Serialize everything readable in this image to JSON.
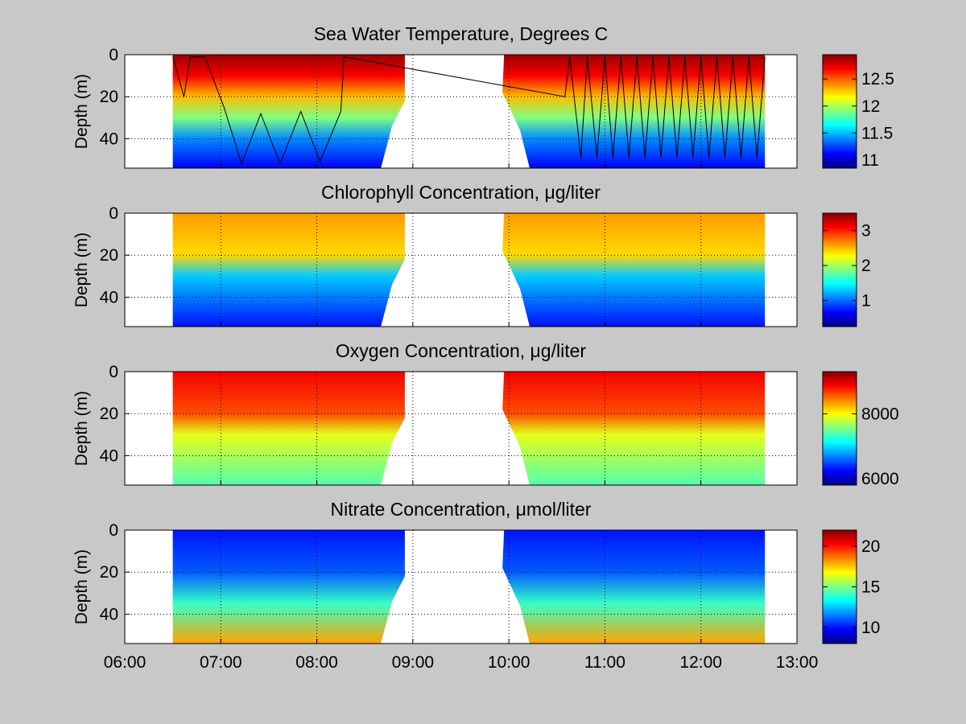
{
  "figure": {
    "background": "#c8c8c8",
    "colormap": "jet",
    "x_tick_labels": [
      "06:00",
      "07:00",
      "08:00",
      "09:00",
      "10:00",
      "11:00",
      "12:00",
      "13:00"
    ]
  },
  "chart_data": [
    {
      "type": "heatmap",
      "title": "Sea Water Temperature, Degrees C",
      "xlabel": "",
      "ylabel": "Depth (m)",
      "xlim": [
        "06:00",
        "13:00"
      ],
      "ylim": [
        54,
        0
      ],
      "y_ticks": [
        0,
        20,
        40
      ],
      "y_tick_labels": [
        "0",
        "20",
        "40"
      ],
      "x_ticks": [
        "06:00",
        "07:00",
        "08:00",
        "09:00",
        "10:00",
        "11:00",
        "12:00",
        "13:00"
      ],
      "grid": "dotted",
      "colorbar": {
        "range": [
          10.85,
          12.95
        ],
        "ticks": [
          11,
          11.5,
          12,
          12.5
        ],
        "tick_labels": [
          "11",
          "11.5",
          "12",
          "12.5"
        ]
      },
      "data_extent": {
        "segment1_time": [
          "06:30",
          "08:55"
        ],
        "segment2_time": [
          "09:55",
          "12:40"
        ],
        "max_depth": 54
      },
      "depth_profile": [
        {
          "depth": 0,
          "value": 12.9
        },
        {
          "depth": 10,
          "value": 12.7
        },
        {
          "depth": 20,
          "value": 12.3
        },
        {
          "depth": 30,
          "value": 11.9
        },
        {
          "depth": 40,
          "value": 11.4
        },
        {
          "depth": 54,
          "value": 11.1
        }
      ],
      "glider_track": [
        [
          "06:30",
          1
        ],
        [
          "06:37",
          20
        ],
        [
          "06:41",
          1
        ],
        [
          "06:50",
          1
        ],
        [
          "07:02",
          25
        ],
        [
          "07:13",
          52
        ],
        [
          "07:25",
          28
        ],
        [
          "07:37",
          52
        ],
        [
          "07:50",
          27
        ],
        [
          "08:02",
          51
        ],
        [
          "08:15",
          27
        ],
        [
          "08:17",
          1
        ],
        [
          "10:35",
          20
        ],
        [
          "10:38",
          1
        ],
        [
          "10:45",
          49
        ],
        [
          "10:49",
          1
        ],
        [
          "10:55",
          49
        ],
        [
          "11:00",
          1
        ],
        [
          "11:05",
          49
        ],
        [
          "11:10",
          1
        ],
        [
          "11:15",
          49
        ],
        [
          "11:20",
          1
        ],
        [
          "11:25",
          49
        ],
        [
          "11:30",
          1
        ],
        [
          "11:35",
          49
        ],
        [
          "11:40",
          1
        ],
        [
          "11:45",
          49
        ],
        [
          "11:50",
          1
        ],
        [
          "11:55",
          49
        ],
        [
          "12:00",
          1
        ],
        [
          "12:05",
          49
        ],
        [
          "12:10",
          1
        ],
        [
          "12:15",
          49
        ],
        [
          "12:20",
          1
        ],
        [
          "12:25",
          49
        ],
        [
          "12:30",
          1
        ],
        [
          "12:35",
          49
        ],
        [
          "12:40",
          1
        ]
      ]
    },
    {
      "type": "heatmap",
      "title": "Chlorophyll Concentration, μg/liter",
      "xlabel": "",
      "ylabel": "Depth (m)",
      "xlim": [
        "06:00",
        "13:00"
      ],
      "ylim": [
        54,
        0
      ],
      "y_ticks": [
        0,
        20,
        40
      ],
      "y_tick_labels": [
        "0",
        "20",
        "40"
      ],
      "x_ticks": [
        "06:00",
        "07:00",
        "08:00",
        "09:00",
        "10:00",
        "11:00",
        "12:00",
        "13:00"
      ],
      "grid": "dotted",
      "colorbar": {
        "range": [
          0.25,
          3.5
        ],
        "ticks": [
          1,
          2,
          3
        ],
        "tick_labels": [
          "1",
          "2",
          "3"
        ]
      },
      "depth_profile": [
        {
          "depth": 0,
          "value": 2.6
        },
        {
          "depth": 20,
          "value": 2.4
        },
        {
          "depth": 30,
          "value": 1.3
        },
        {
          "depth": 54,
          "value": 0.7
        }
      ]
    },
    {
      "type": "heatmap",
      "title": "Oxygen Concentration, μg/liter",
      "xlabel": "",
      "ylabel": "Depth (m)",
      "xlim": [
        "06:00",
        "13:00"
      ],
      "ylim": [
        54,
        0
      ],
      "y_ticks": [
        0,
        20,
        40
      ],
      "y_tick_labels": [
        "0",
        "20",
        "40"
      ],
      "x_ticks": [
        "06:00",
        "07:00",
        "08:00",
        "09:00",
        "10:00",
        "11:00",
        "12:00",
        "13:00"
      ],
      "grid": "dotted",
      "colorbar": {
        "range": [
          5800,
          9300
        ],
        "ticks": [
          6000,
          8000
        ],
        "tick_labels": [
          "6000",
          "8000"
        ]
      },
      "depth_profile": [
        {
          "depth": 0,
          "value": 8900
        },
        {
          "depth": 20,
          "value": 8600
        },
        {
          "depth": 30,
          "value": 7900
        },
        {
          "depth": 54,
          "value": 7400
        }
      ]
    },
    {
      "type": "heatmap",
      "title": "Nitrate Concentration, μmol/liter",
      "xlabel": "",
      "ylabel": "Depth (m)",
      "xlim": [
        "06:00",
        "13:00"
      ],
      "ylim": [
        54,
        0
      ],
      "y_ticks": [
        0,
        20,
        40
      ],
      "y_tick_labels": [
        "0",
        "20",
        "40"
      ],
      "x_ticks": [
        "06:00",
        "07:00",
        "08:00",
        "09:00",
        "10:00",
        "11:00",
        "12:00",
        "13:00"
      ],
      "grid": "dotted",
      "colorbar": {
        "range": [
          8,
          22
        ],
        "ticks": [
          10,
          15,
          20
        ],
        "tick_labels": [
          "10",
          "15",
          "20"
        ]
      },
      "depth_profile": [
        {
          "depth": 0,
          "value": 10
        },
        {
          "depth": 20,
          "value": 11
        },
        {
          "depth": 35,
          "value": 14
        },
        {
          "depth": 54,
          "value": 18
        }
      ]
    }
  ]
}
